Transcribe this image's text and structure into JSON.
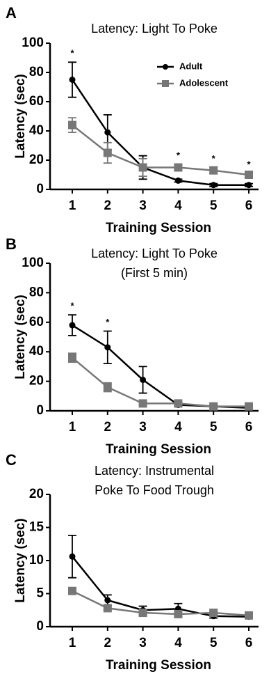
{
  "chart_data": [
    {
      "type": "line",
      "panel": "A",
      "title": [
        "Latency: Light To Poke"
      ],
      "xlabel": "Training Session",
      "ylabel": "Latency (sec)",
      "categories": [
        1,
        2,
        3,
        4,
        5,
        6
      ],
      "ylim": [
        0,
        100
      ],
      "yticks": [
        0,
        20,
        40,
        60,
        80,
        100
      ],
      "legend": "upper right",
      "series": [
        {
          "name": "Adult",
          "color": "#000000",
          "marker": "circle",
          "values": [
            75,
            39,
            15,
            6,
            3,
            3
          ],
          "errors": [
            12,
            12,
            8,
            1,
            1,
            1
          ]
        },
        {
          "name": "Adolescent",
          "color": "#777777",
          "marker": "square",
          "values": [
            44,
            25,
            15,
            15,
            13,
            10
          ],
          "errors": [
            5,
            7,
            6,
            2,
            2,
            1
          ]
        }
      ],
      "annotations": [
        {
          "category": 1,
          "text": "*"
        },
        {
          "category": 4,
          "text": "*"
        },
        {
          "category": 5,
          "text": "*"
        },
        {
          "category": 6,
          "text": "*"
        }
      ]
    },
    {
      "type": "line",
      "panel": "B",
      "title": [
        "Latency: Light To Poke",
        "(First 5 min)"
      ],
      "xlabel": "Training Session",
      "ylabel": "Latency (sec)",
      "categories": [
        1,
        2,
        3,
        4,
        5,
        6
      ],
      "ylim": [
        0,
        100
      ],
      "yticks": [
        0,
        20,
        40,
        60,
        80,
        100
      ],
      "series": [
        {
          "color": "#000000",
          "marker": "circle",
          "values": [
            58,
            43,
            21,
            4,
            3,
            2
          ],
          "errors": [
            7,
            11,
            9,
            1,
            1,
            1
          ]
        },
        {
          "color": "#777777",
          "marker": "square",
          "values": [
            36,
            16,
            5,
            5,
            3,
            3
          ],
          "errors": [
            3,
            3,
            1,
            1,
            1,
            1
          ]
        }
      ],
      "annotations": [
        {
          "category": 1,
          "text": "*"
        },
        {
          "category": 2,
          "text": "*"
        }
      ]
    },
    {
      "type": "line",
      "panel": "C",
      "title": [
        "Latency: Instrumental",
        "Poke To Food Trough"
      ],
      "xlabel": "Training Session",
      "ylabel": "Latency (sec)",
      "categories": [
        1,
        2,
        3,
        4,
        5,
        6
      ],
      "ylim": [
        0,
        20
      ],
      "yticks": [
        0,
        5,
        10,
        15,
        20
      ],
      "series": [
        {
          "color": "#000000",
          "marker": "circle",
          "values": [
            10.6,
            4,
            2.5,
            2.7,
            1.6,
            1.5
          ],
          "errors": [
            3.2,
            0.8,
            0.6,
            0.8,
            0.3,
            0.2
          ]
        },
        {
          "color": "#777777",
          "marker": "square",
          "values": [
            5.4,
            2.8,
            2.1,
            1.9,
            2.1,
            1.7
          ],
          "errors": [
            0.3,
            0.3,
            0.3,
            0.4,
            0.3,
            0.2
          ]
        }
      ],
      "annotations": []
    }
  ]
}
